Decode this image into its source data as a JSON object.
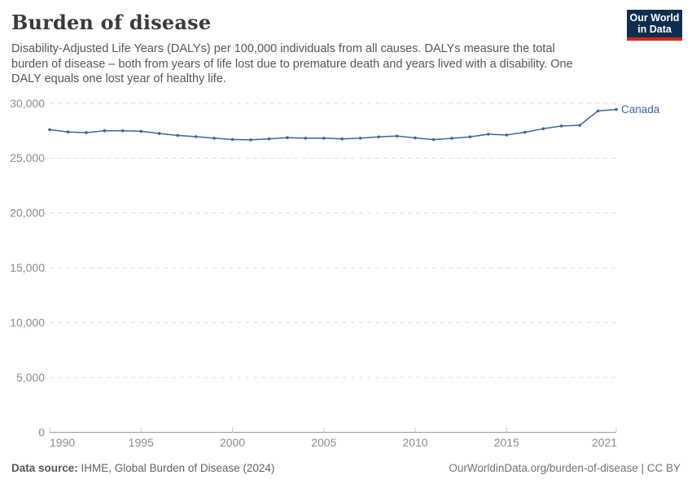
{
  "header": {
    "title": "Burden of disease",
    "subtitle": "Disability-Adjusted Life Years (DALYs) per 100,000 individuals from all causes. DALYs measure the total burden of disease – both from years of life lost due to premature death and years lived with a disability. One DALY equals one lost year of healthy life."
  },
  "logo": {
    "line1": "Our World",
    "line2": "in Data",
    "background_color": "#0f2d4e",
    "accent_color": "#cf2a1d"
  },
  "chart_data": {
    "type": "line",
    "title": "Burden of disease",
    "xlabel": "",
    "ylabel": "",
    "ylim": [
      0,
      30000
    ],
    "yticks": [
      0,
      5000,
      10000,
      15000,
      20000,
      25000,
      30000
    ],
    "xticks": [
      1990,
      1995,
      2000,
      2005,
      2010,
      2015,
      2021
    ],
    "grid": "horizontal-dashed",
    "legend_position": "end-of-line",
    "series": [
      {
        "name": "Canada",
        "color": "#3d64a5",
        "x": [
          1990,
          1991,
          1992,
          1993,
          1994,
          1995,
          1996,
          1997,
          1998,
          1999,
          2000,
          2001,
          2002,
          2003,
          2004,
          2005,
          2006,
          2007,
          2008,
          2009,
          2010,
          2011,
          2012,
          2013,
          2014,
          2015,
          2016,
          2017,
          2018,
          2019,
          2020,
          2021
        ],
        "values": [
          27600,
          27390,
          27320,
          27500,
          27490,
          27450,
          27250,
          27070,
          26960,
          26820,
          26700,
          26670,
          26760,
          26870,
          26820,
          26820,
          26760,
          26820,
          26940,
          27010,
          26840,
          26690,
          26800,
          26940,
          27180,
          27110,
          27360,
          27680,
          27930,
          28000,
          29300,
          29440
        ]
      }
    ],
    "style": {
      "grid_color": "#dcdcdc",
      "axis_color": "#9a9a9a",
      "tick_color": "#cccccc",
      "tick_label_color": "#8c8c8c"
    }
  },
  "footer": {
    "source_label": "Data source:",
    "source_text": " IHME, Global Burden of Disease (2024)",
    "credit": "OurWorldinData.org/burden-of-disease | CC BY"
  }
}
